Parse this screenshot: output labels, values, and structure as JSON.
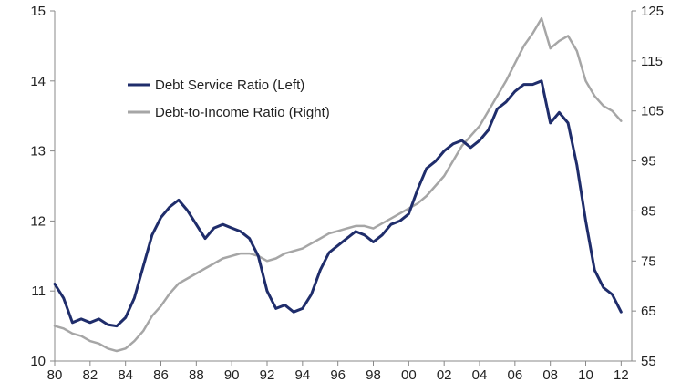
{
  "chart_data": {
    "type": "line",
    "title": "",
    "xlabel": "",
    "ylabel": "",
    "xlim": [
      1980,
      2012.6
    ],
    "ylim_left": [
      10,
      15
    ],
    "ylim_right": [
      55,
      125
    ],
    "x_ticks": [
      1980,
      1982,
      1984,
      1986,
      1988,
      1990,
      1992,
      1994,
      1996,
      1998,
      2000,
      2002,
      2004,
      2006,
      2008,
      2010,
      2012
    ],
    "x_tick_labels": [
      "80",
      "82",
      "84",
      "86",
      "88",
      "90",
      "92",
      "94",
      "96",
      "98",
      "00",
      "02",
      "04",
      "06",
      "08",
      "10",
      "12"
    ],
    "y_left_ticks": [
      10,
      11,
      12,
      13,
      14,
      15
    ],
    "y_left_tick_labels": [
      "10",
      "11",
      "12",
      "13",
      "14",
      "15"
    ],
    "y_right_ticks": [
      55,
      65,
      75,
      85,
      95,
      105,
      115,
      125
    ],
    "y_right_tick_labels": [
      "55",
      "65",
      "75",
      "85",
      "95",
      "105",
      "115",
      "125"
    ],
    "grid": false,
    "legend_position": "upper-left",
    "series": [
      {
        "name": "Debt Service Ratio (Left)",
        "axis": "left",
        "color": "#1f2d6b",
        "x": [
          1980.0,
          1980.5,
          1981.0,
          1981.5,
          1982.0,
          1982.5,
          1983.0,
          1983.5,
          1984.0,
          1984.5,
          1985.0,
          1985.5,
          1986.0,
          1986.5,
          1987.0,
          1987.5,
          1988.0,
          1988.5,
          1989.0,
          1989.5,
          1990.0,
          1990.5,
          1991.0,
          1991.5,
          1992.0,
          1992.5,
          1993.0,
          1993.5,
          1994.0,
          1994.5,
          1995.0,
          1995.5,
          1996.0,
          1996.5,
          1997.0,
          1997.5,
          1998.0,
          1998.5,
          1999.0,
          1999.5,
          2000.0,
          2000.5,
          2001.0,
          2001.5,
          2002.0,
          2002.5,
          2003.0,
          2003.5,
          2004.0,
          2004.5,
          2005.0,
          2005.5,
          2006.0,
          2006.5,
          2007.0,
          2007.5,
          2008.0,
          2008.5,
          2009.0,
          2009.5,
          2010.0,
          2010.5,
          2011.0,
          2011.5,
          2012.0
        ],
        "values": [
          11.1,
          10.9,
          10.55,
          10.6,
          10.55,
          10.6,
          10.52,
          10.5,
          10.62,
          10.9,
          11.35,
          11.8,
          12.05,
          12.2,
          12.3,
          12.15,
          11.95,
          11.75,
          11.9,
          11.95,
          11.9,
          11.85,
          11.75,
          11.5,
          11.0,
          10.75,
          10.8,
          10.7,
          10.75,
          10.95,
          11.3,
          11.55,
          11.65,
          11.75,
          11.85,
          11.8,
          11.7,
          11.8,
          11.95,
          12.0,
          12.1,
          12.45,
          12.75,
          12.85,
          13.0,
          13.1,
          13.15,
          13.05,
          13.15,
          13.3,
          13.6,
          13.7,
          13.85,
          13.95,
          13.95,
          14.0,
          13.4,
          13.55,
          13.4,
          12.8,
          12.0,
          11.3,
          11.05,
          10.95,
          10.7
        ]
      },
      {
        "name": "Debt-to-Income Ratio (Right)",
        "axis": "right",
        "color": "#a6a6a6",
        "x": [
          1980.0,
          1980.5,
          1981.0,
          1981.5,
          1982.0,
          1982.5,
          1983.0,
          1983.5,
          1984.0,
          1984.5,
          1985.0,
          1985.5,
          1986.0,
          1986.5,
          1987.0,
          1987.5,
          1988.0,
          1988.5,
          1989.0,
          1989.5,
          1990.0,
          1990.5,
          1991.0,
          1991.5,
          1992.0,
          1992.5,
          1993.0,
          1993.5,
          1994.0,
          1994.5,
          1995.0,
          1995.5,
          1996.0,
          1996.5,
          1997.0,
          1997.5,
          1998.0,
          1998.5,
          1999.0,
          1999.5,
          2000.0,
          2000.5,
          2001.0,
          2001.5,
          2002.0,
          2002.5,
          2003.0,
          2003.5,
          2004.0,
          2004.5,
          2005.0,
          2005.5,
          2006.0,
          2006.5,
          2007.0,
          2007.5,
          2008.0,
          2008.5,
          2009.0,
          2009.5,
          2010.0,
          2010.5,
          2011.0,
          2011.5,
          2012.0
        ],
        "values": [
          62,
          61.5,
          60.5,
          60,
          59,
          58.5,
          57.5,
          57,
          57.5,
          59,
          61,
          64,
          66,
          68.5,
          70.5,
          71.5,
          72.5,
          73.5,
          74.5,
          75.5,
          76,
          76.5,
          76.5,
          76,
          75,
          75.5,
          76.5,
          77,
          77.5,
          78.5,
          79.5,
          80.5,
          81,
          81.5,
          82,
          82,
          81.5,
          82.5,
          83.5,
          84.5,
          85.5,
          86.5,
          88,
          90,
          92,
          95,
          98,
          100,
          102,
          105,
          108,
          111,
          114.5,
          118,
          120.5,
          123.5,
          117.5,
          119,
          120,
          117,
          111,
          108,
          106,
          105,
          103
        ]
      }
    ]
  }
}
